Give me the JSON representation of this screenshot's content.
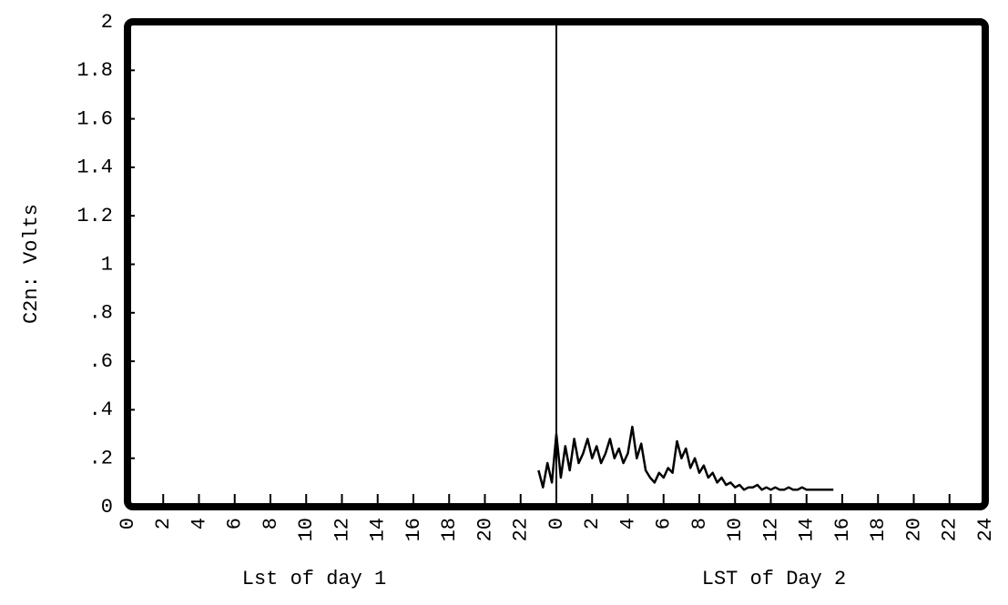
{
  "chart_data": {
    "type": "line",
    "xlabel_day1": "Lst of day 1",
    "xlabel_day2": "LST of Day 2",
    "ylabel": "C2n: Volts",
    "xlim": [
      0,
      48
    ],
    "ylim": [
      0,
      2
    ],
    "yticks": [
      0,
      {
        "value": 0.2,
        "label": ".2"
      },
      {
        "value": 0.4,
        "label": ".4"
      },
      {
        "value": 0.6,
        "label": ".6"
      },
      {
        "value": 0.8,
        "label": ".8"
      },
      1,
      1.2,
      1.4,
      1.6,
      1.8,
      2
    ],
    "xticks": [
      0,
      2,
      4,
      6,
      8,
      10,
      12,
      14,
      16,
      18,
      20,
      22,
      {
        "value": 24,
        "label": "0"
      },
      {
        "value": 26,
        "label": "2"
      },
      {
        "value": 28,
        "label": "4"
      },
      {
        "value": 30,
        "label": "6"
      },
      {
        "value": 32,
        "label": "8"
      },
      {
        "value": 34,
        "label": "10"
      },
      {
        "value": 36,
        "label": "12"
      },
      {
        "value": 38,
        "label": "14"
      },
      {
        "value": 40,
        "label": "16"
      },
      {
        "value": 42,
        "label": "18"
      },
      {
        "value": 44,
        "label": "20"
      },
      {
        "value": 46,
        "label": "22"
      },
      {
        "value": 48,
        "label": "24"
      }
    ],
    "day_divider": 24,
    "color": "#000000",
    "x": [
      23,
      23.25,
      23.5,
      23.75,
      24,
      24.25,
      24.5,
      24.75,
      25,
      25.25,
      25.5,
      25.75,
      26,
      26.25,
      26.5,
      26.75,
      27,
      27.25,
      27.5,
      27.75,
      28,
      28.25,
      28.5,
      28.75,
      29,
      29.25,
      29.5,
      29.75,
      30,
      30.25,
      30.5,
      30.75,
      31,
      31.25,
      31.5,
      31.75,
      32,
      32.25,
      32.5,
      32.75,
      33,
      33.25,
      33.5,
      33.75,
      34,
      34.25,
      34.5,
      34.75,
      35,
      35.25,
      35.5,
      35.75,
      36,
      36.25,
      36.5,
      36.75,
      37,
      37.25,
      37.5,
      37.75,
      38,
      38.5,
      39,
      39.5
    ],
    "values": [
      0.15,
      0.08,
      0.18,
      0.1,
      0.3,
      0.12,
      0.25,
      0.15,
      0.28,
      0.18,
      0.22,
      0.28,
      0.2,
      0.25,
      0.18,
      0.22,
      0.28,
      0.2,
      0.24,
      0.18,
      0.22,
      0.33,
      0.2,
      0.26,
      0.15,
      0.12,
      0.1,
      0.14,
      0.12,
      0.16,
      0.14,
      0.27,
      0.2,
      0.24,
      0.16,
      0.2,
      0.14,
      0.17,
      0.12,
      0.14,
      0.1,
      0.12,
      0.09,
      0.1,
      0.08,
      0.09,
      0.07,
      0.08,
      0.08,
      0.09,
      0.07,
      0.08,
      0.07,
      0.08,
      0.07,
      0.07,
      0.08,
      0.07,
      0.07,
      0.08,
      0.07,
      0.07,
      0.07,
      0.07
    ]
  }
}
